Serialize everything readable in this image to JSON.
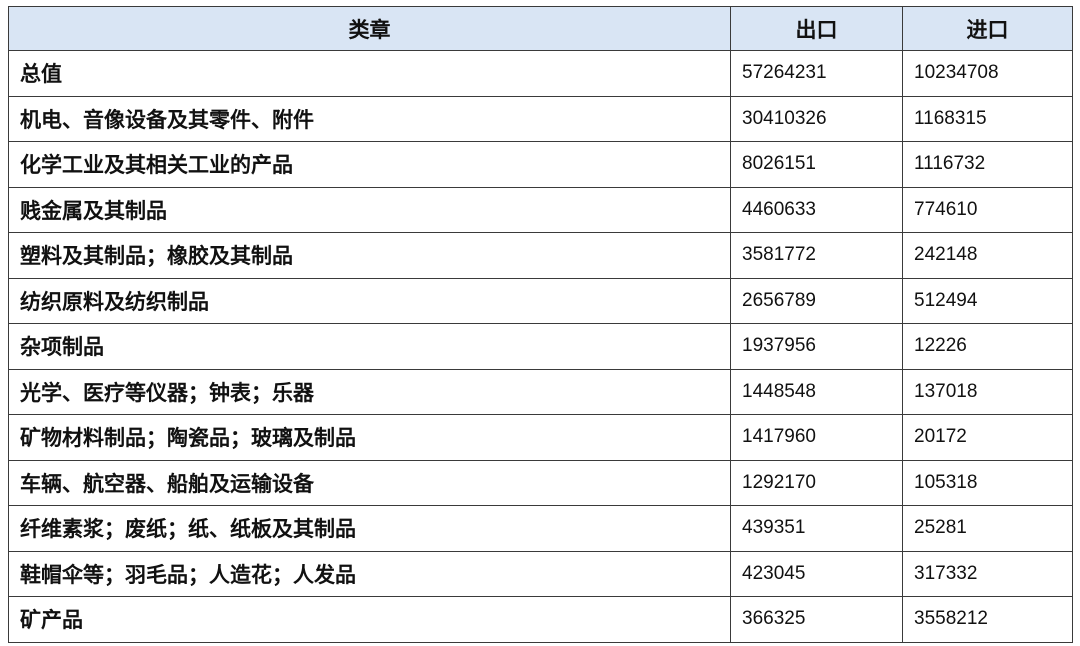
{
  "table": {
    "headers": {
      "category": "类章",
      "export": "出口",
      "import": "进口"
    },
    "rows": [
      {
        "category": "总值",
        "export": "57264231",
        "import": "10234708"
      },
      {
        "category": "机电、音像设备及其零件、附件",
        "export": "30410326",
        "import": "1168315"
      },
      {
        "category": "化学工业及其相关工业的产品",
        "export": "8026151",
        "import": "1116732"
      },
      {
        "category": "贱金属及其制品",
        "export": "4460633",
        "import": "774610"
      },
      {
        "category": "塑料及其制品；橡胶及其制品",
        "export": "3581772",
        "import": "242148"
      },
      {
        "category": "纺织原料及纺织制品",
        "export": "2656789",
        "import": "512494"
      },
      {
        "category": "杂项制品",
        "export": "1937956",
        "import": "12226"
      },
      {
        "category": "光学、医疗等仪器；钟表；乐器",
        "export": "1448548",
        "import": "137018"
      },
      {
        "category": "矿物材料制品；陶瓷品；玻璃及制品",
        "export": "1417960",
        "import": "20172"
      },
      {
        "category": "车辆、航空器、船舶及运输设备",
        "export": "1292170",
        "import": "105318"
      },
      {
        "category": "纤维素浆；废纸；纸、纸板及其制品",
        "export": "439351",
        "import": "25281"
      },
      {
        "category": "鞋帽伞等；羽毛品；人造花；人发品",
        "export": "423045",
        "import": "317332"
      },
      {
        "category": "矿产品",
        "export": "366325",
        "import": "3558212"
      }
    ]
  },
  "colors": {
    "header_bg": "#d9e5f4",
    "border": "#3a3a3a",
    "text": "#111111"
  }
}
